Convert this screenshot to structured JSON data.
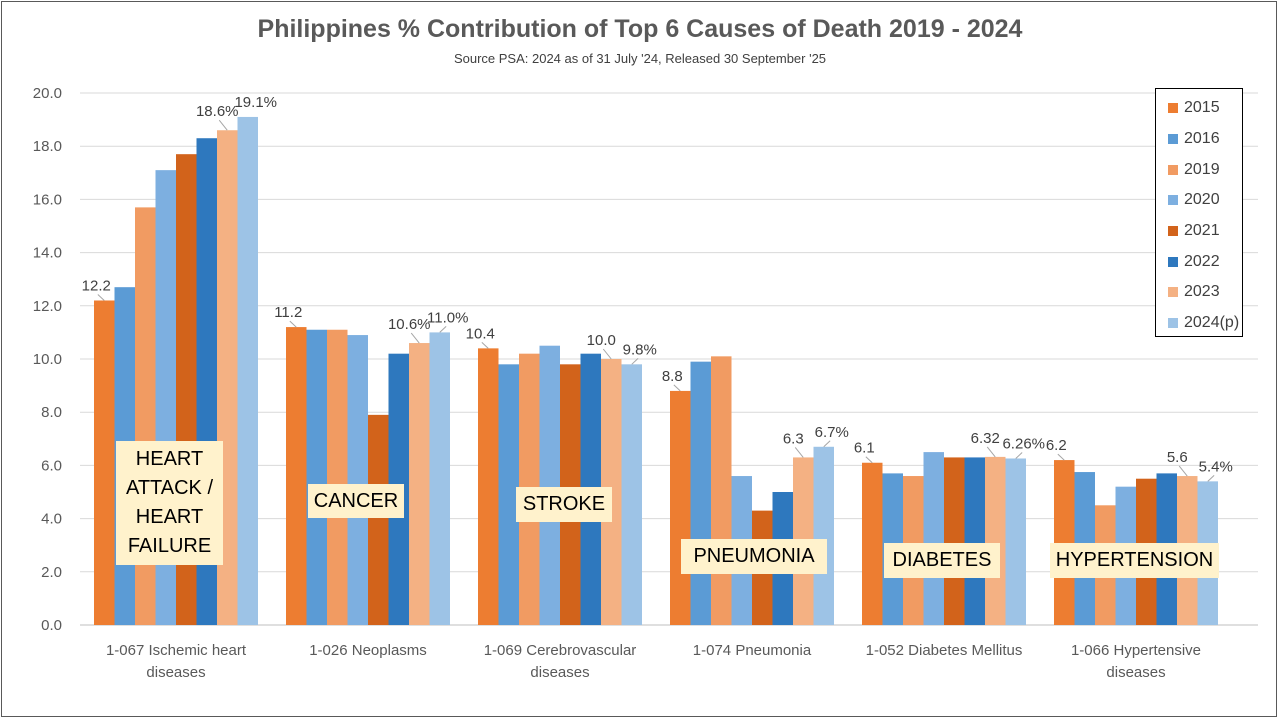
{
  "chart_data": {
    "type": "bar",
    "title": "Philippines % Contribution of Top 6 Causes of Death 2019 - 2024",
    "subtitle": "Source PSA: 2024 as of 31 July '24, Released 30 September '25",
    "xlabel": "",
    "ylabel": "",
    "ylim": [
      0,
      20
    ],
    "yticks": [
      "0.0",
      "2.0",
      "4.0",
      "6.0",
      "8.0",
      "10.0",
      "12.0",
      "14.0",
      "16.0",
      "18.0",
      "20.0"
    ],
    "grid": true,
    "legend_position": "right",
    "categories": [
      [
        "1-067  Ischemic heart",
        "diseases"
      ],
      [
        "1-026  Neoplasms"
      ],
      [
        "1-069  Cerebrovascular",
        "diseases"
      ],
      [
        "1-074  Pneumonia"
      ],
      [
        "1-052  Diabetes Mellitus"
      ],
      [
        "1-066  Hypertensive",
        "diseases"
      ]
    ],
    "series": [
      {
        "name": "2015",
        "color": "#ED7D31",
        "values": [
          12.2,
          11.2,
          10.4,
          8.8,
          6.1,
          6.2
        ]
      },
      {
        "name": "2016",
        "color": "#5B9BD5",
        "values": [
          12.7,
          11.1,
          9.8,
          9.9,
          5.7,
          5.75
        ]
      },
      {
        "name": "2019",
        "color": "#F19B62",
        "values": [
          15.7,
          11.1,
          10.2,
          10.1,
          5.6,
          4.5
        ]
      },
      {
        "name": "2020",
        "color": "#7DAFE0",
        "values": [
          17.1,
          10.9,
          10.5,
          5.6,
          6.5,
          5.2
        ]
      },
      {
        "name": "2021",
        "color": "#D2631B",
        "values": [
          17.7,
          7.9,
          9.8,
          4.3,
          6.3,
          5.5
        ]
      },
      {
        "name": "2022",
        "color": "#2E78BE",
        "values": [
          18.3,
          10.2,
          10.2,
          5.0,
          6.3,
          5.7
        ]
      },
      {
        "name": "2023",
        "color": "#F4B183",
        "values": [
          18.6,
          10.6,
          10.0,
          6.3,
          6.32,
          5.6
        ]
      },
      {
        "name": "2024(p)",
        "color": "#9DC3E6",
        "values": [
          19.1,
          11.0,
          9.8,
          6.7,
          6.26,
          5.4
        ]
      }
    ],
    "data_labels": [
      {
        "group": 0,
        "series": 0,
        "text": "12.2"
      },
      {
        "group": 0,
        "series": 6,
        "text": "18.6%"
      },
      {
        "group": 0,
        "series": 7,
        "text": "19.1%"
      },
      {
        "group": 1,
        "series": 0,
        "text": "11.2"
      },
      {
        "group": 1,
        "series": 6,
        "text": "10.6%"
      },
      {
        "group": 1,
        "series": 7,
        "text": "11.0%"
      },
      {
        "group": 2,
        "series": 0,
        "text": "10.4"
      },
      {
        "group": 2,
        "series": 6,
        "text": "10.0"
      },
      {
        "group": 2,
        "series": 7,
        "text": "9.8%"
      },
      {
        "group": 3,
        "series": 0,
        "text": "8.8"
      },
      {
        "group": 3,
        "series": 6,
        "text": "6.3"
      },
      {
        "group": 3,
        "series": 7,
        "text": "6.7%"
      },
      {
        "group": 4,
        "series": 0,
        "text": "6.1"
      },
      {
        "group": 4,
        "series": 6,
        "text": "6.32"
      },
      {
        "group": 4,
        "series": 7,
        "text": "6.26%"
      },
      {
        "group": 5,
        "series": 0,
        "text": "6.2"
      },
      {
        "group": 5,
        "series": 6,
        "text": "5.6"
      },
      {
        "group": 5,
        "series": 7,
        "text": "5.4%"
      }
    ],
    "annotations": [
      "HEART ATTACK / HEART FAILURE",
      "CANCER",
      "STROKE",
      "PNEUMONIA",
      "DIABETES",
      "HYPERTENSION"
    ]
  }
}
